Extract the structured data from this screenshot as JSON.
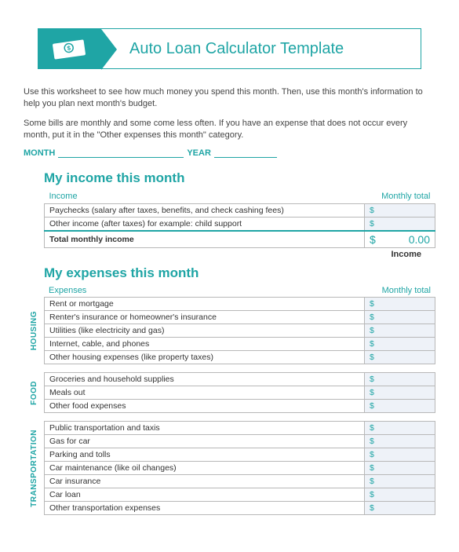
{
  "banner": {
    "title": "Auto Loan Calculator  Template"
  },
  "intro": {
    "p1": "Use this worksheet to see how much money you spend this month. Then, use this month's information to help you plan next month's budget.",
    "p2": "Some bills are monthly and some come less often. If you have an expense that does not occur every month, put it in the \"Other expenses this month\" category."
  },
  "monthRow": {
    "monthLabel": "MONTH",
    "yearLabel": "YEAR"
  },
  "income": {
    "sectionTitle": "My income this month",
    "colIncome": "Income",
    "colTotal": "Monthly total",
    "rows": [
      {
        "label": "Paychecks (salary after taxes, benefits, and check cashing fees)",
        "amt": "$"
      },
      {
        "label": "Other income (after taxes) for example: child support",
        "amt": "$"
      }
    ],
    "totalLabel": "Total monthly income",
    "totalDollar": "$",
    "totalValue": "0.00",
    "footerLabel": "Income"
  },
  "expenses": {
    "sectionTitle": "My expenses this month",
    "colExpenses": "Expenses",
    "colTotal": "Monthly total",
    "groups": [
      {
        "name": "HOUSING",
        "rows": [
          {
            "label": "Rent or mortgage",
            "amt": "$"
          },
          {
            "label": "Renter's insurance or homeowner's insurance",
            "amt": "$"
          },
          {
            "label": "Utilities (like electricity and gas)",
            "amt": "$"
          },
          {
            "label": "Internet, cable, and phones",
            "amt": "$"
          },
          {
            "label": "Other housing expenses (like property taxes)",
            "amt": "$"
          }
        ]
      },
      {
        "name": "FOOD",
        "rows": [
          {
            "label": "Groceries and household supplies",
            "amt": "$"
          },
          {
            "label": "Meals out",
            "amt": "$"
          },
          {
            "label": "Other food expenses",
            "amt": "$"
          }
        ]
      },
      {
        "name": "TRANSPORTATION",
        "rows": [
          {
            "label": "Public transportation and taxis",
            "amt": "$"
          },
          {
            "label": "Gas for car",
            "amt": "$"
          },
          {
            "label": "Parking and tolls",
            "amt": "$"
          },
          {
            "label": "Car maintenance (like oil changes)",
            "amt": "$"
          },
          {
            "label": "Car insurance",
            "amt": "$"
          },
          {
            "label": "Car loan",
            "amt": "$"
          },
          {
            "label": "Other transportation expenses",
            "amt": "$"
          }
        ]
      }
    ]
  },
  "colors": {
    "accent": "#1fa5a5",
    "border": "#b8b8b8",
    "amtBg": "#eef2f8"
  }
}
